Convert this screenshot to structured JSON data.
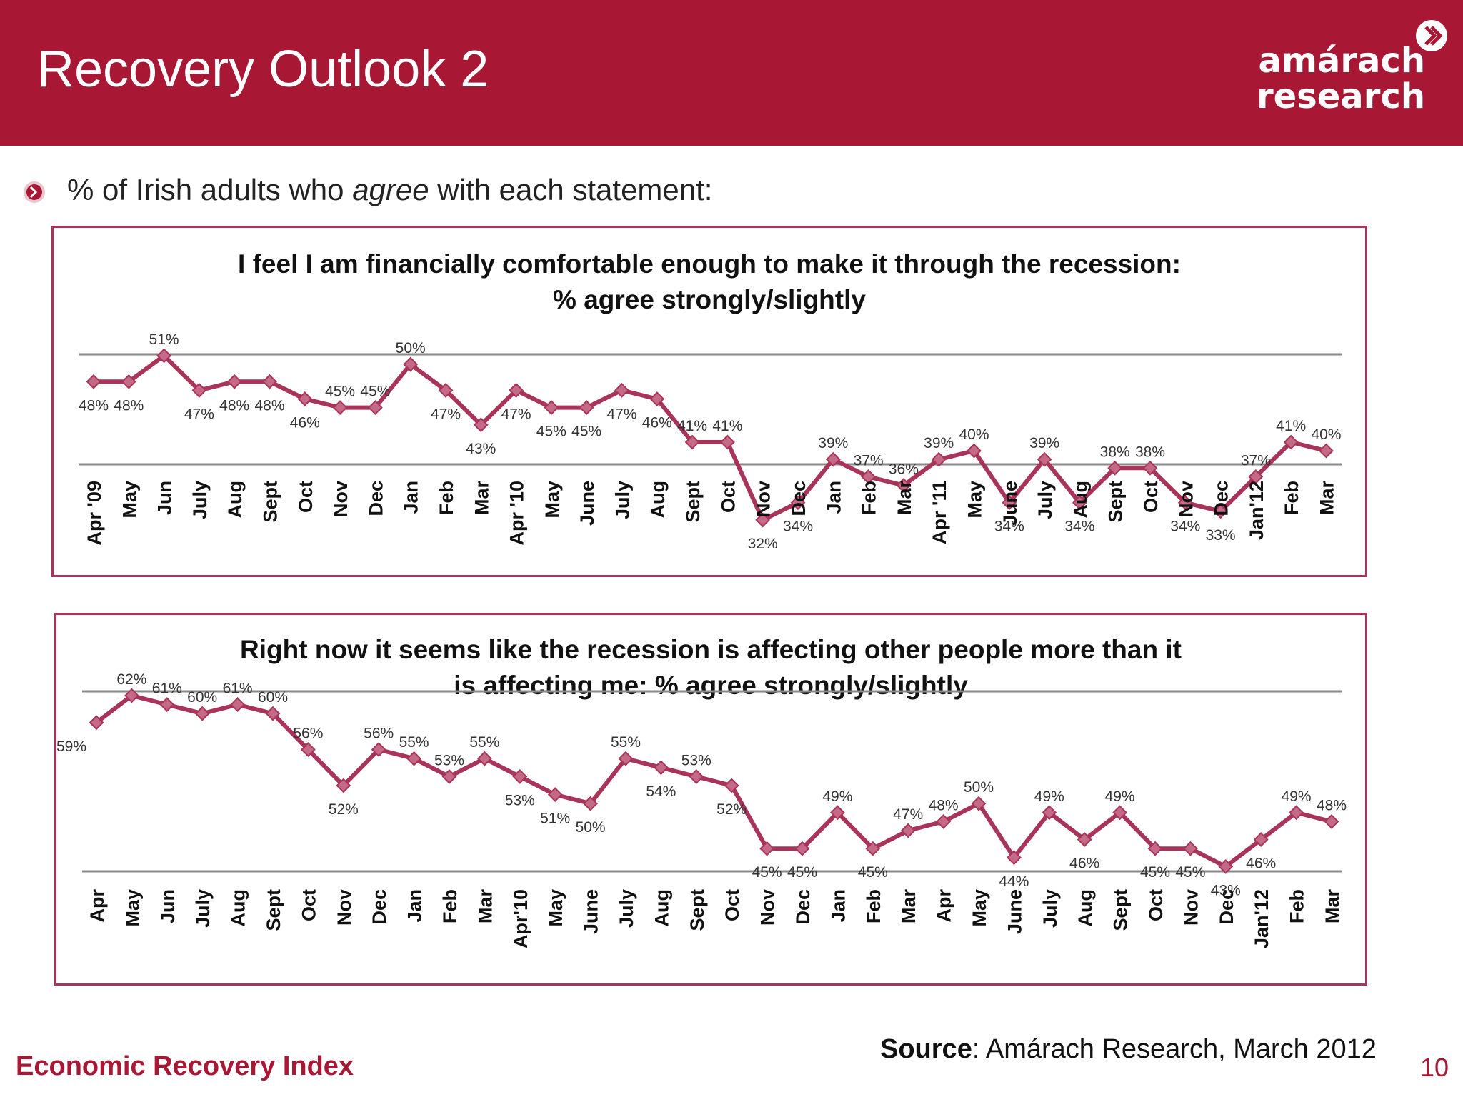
{
  "header": {
    "title": "Recovery Outlook 2",
    "logo_line1": "amárach",
    "logo_line2": "research",
    "icon": "chevron-circle-icon"
  },
  "subtitle": {
    "pre": "% of Irish adults who ",
    "em": "agree",
    "post": " with each statement:"
  },
  "colors": {
    "brand": "#a81834",
    "series": "#a8345a",
    "marker": "#c46a86",
    "axis": "#8a8a8a"
  },
  "footer": {
    "left": "Economic Recovery Index",
    "source_label": "Source",
    "source_text": ": Amárach Research, March 2012",
    "page": "10"
  },
  "chart_data": [
    {
      "type": "line",
      "title_line1": "I feel I am financially comfortable enough to make it through the recession:",
      "title_line2": "% agree strongly/slightly",
      "categories": [
        "Apr '09",
        "May",
        "Jun",
        "July",
        "Aug",
        "Sept",
        "Oct",
        "Nov",
        "Dec",
        "Jan",
        "Feb",
        "Mar",
        "Apr '10",
        "May",
        "June",
        "July",
        "Aug",
        "Sept",
        "Oct",
        "Nov",
        "Dec",
        "Jan",
        "Feb",
        "Mar",
        "Apr '11",
        "May",
        "June",
        "July",
        "Aug",
        "Sept",
        "Oct",
        "Nov",
        "Dec",
        "Jan'12",
        "Feb",
        "Mar"
      ],
      "values": [
        48,
        48,
        51,
        47,
        48,
        48,
        46,
        45,
        45,
        50,
        47,
        43,
        47,
        45,
        45,
        47,
        46,
        41,
        41,
        32,
        34,
        39,
        37,
        36,
        39,
        40,
        34,
        39,
        34,
        38,
        38,
        34,
        33,
        37,
        41,
        40
      ],
      "labels": [
        "48%",
        "48%",
        "51%",
        "47%",
        "48%",
        "48%",
        "46%",
        "45%",
        "45%",
        "50%",
        "47%",
        "43%",
        "47%",
        "45%",
        "45%",
        "47%",
        "46%",
        "41%",
        "41%",
        "32%",
        "34%",
        "39%",
        "37%",
        "36%",
        "39%",
        "40%",
        "34%",
        "39%",
        "34%",
        "38%",
        "38%",
        "34%",
        "33%",
        "37%",
        "41%",
        "40%"
      ],
      "label_pos": [
        "b",
        "b",
        "a",
        "b",
        "b",
        "b",
        "b",
        "a",
        "a",
        "a",
        "b",
        "b",
        "b",
        "b",
        "b",
        "b",
        "b",
        "a",
        "a",
        "b",
        "b",
        "a",
        "a",
        "a",
        "a",
        "a",
        "b",
        "a",
        "b",
        "a",
        "a",
        "b",
        "b",
        "a",
        "a",
        "a"
      ],
      "grid": false,
      "legend": "none"
    },
    {
      "type": "line",
      "title_line1": "Right now it seems like the recession is affecting other people more than it",
      "title_line2": "is affecting me: % agree strongly/slightly",
      "categories": [
        "Apr",
        "May",
        "Jun",
        "July",
        "Aug",
        "Sept",
        "Oct",
        "Nov",
        "Dec",
        "Jan",
        "Feb",
        "Mar",
        "Apr'10",
        "May",
        "June",
        "July",
        "Aug",
        "Sept",
        "Oct",
        "Nov",
        "Dec",
        "Jan",
        "Feb",
        "Mar",
        "Apr",
        "May",
        "June",
        "July",
        "Aug",
        "Sept",
        "Oct",
        "Nov",
        "Dec",
        "Jan'12",
        "Feb",
        "Mar"
      ],
      "values": [
        59,
        62,
        61,
        60,
        61,
        60,
        56,
        52,
        56,
        55,
        53,
        55,
        53,
        51,
        50,
        55,
        54,
        53,
        52,
        45,
        45,
        49,
        45,
        47,
        48,
        50,
        44,
        49,
        46,
        49,
        45,
        45,
        43,
        46,
        49,
        48
      ],
      "labels": [
        "59%",
        "62%",
        "61%",
        "60%",
        "61%",
        "60%",
        "56%",
        "52%",
        "56%",
        "55%",
        "53%",
        "55%",
        "53%",
        "51%",
        "50%",
        "55%",
        "54%",
        "53%",
        "52%",
        "45%",
        "45%",
        "49%",
        "45%",
        "47%",
        "48%",
        "50%",
        "44%",
        "49%",
        "46%",
        "49%",
        "45%",
        "45%",
        "43%",
        "46%",
        "49%",
        "48%"
      ],
      "label_pos": [
        "l",
        "a",
        "a",
        "a",
        "a",
        "a",
        "a",
        "b",
        "a",
        "a",
        "a",
        "a",
        "b",
        "b",
        "b",
        "a",
        "b",
        "a",
        "b",
        "b",
        "b",
        "a",
        "b",
        "a",
        "a",
        "a",
        "b",
        "a",
        "b",
        "a",
        "b",
        "b",
        "b",
        "b",
        "a",
        "a"
      ],
      "grid": false,
      "legend": "none"
    }
  ]
}
